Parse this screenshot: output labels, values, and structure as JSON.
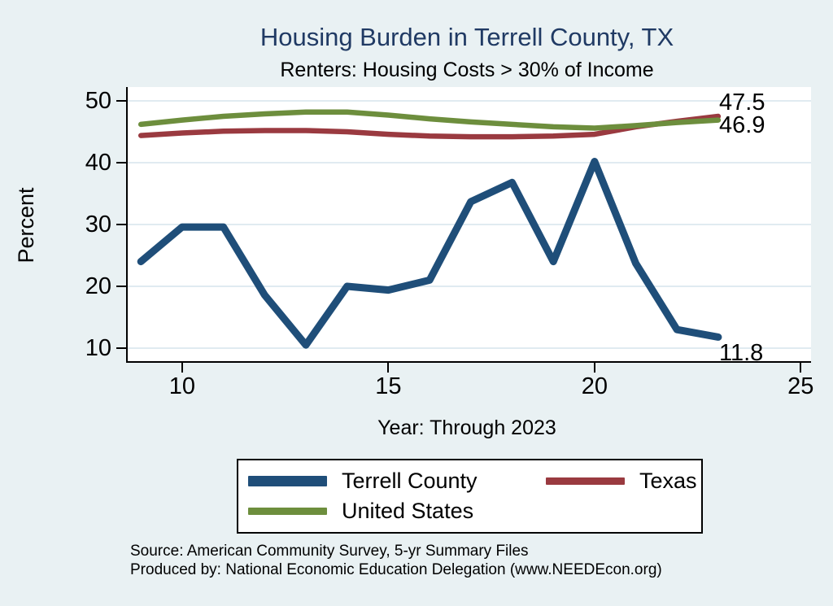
{
  "title": "Housing Burden in Terrell County, TX",
  "subtitle": "Renters: Housing Costs > 30% of Income",
  "y_axis_label": "Percent",
  "x_axis_label": "Year: Through 2023",
  "end_labels": {
    "texas": "47.5",
    "united_states": "46.9",
    "terrell_county": "11.8"
  },
  "source": {
    "line1": "Source: American Community Survey, 5-yr Summary Files",
    "line2": "Produced by: National Economic Education Delegation (www.NEEDEcon.org)"
  },
  "colors": {
    "background": "#e9f1f3",
    "title": "#203a64",
    "terrell_county": "#1f4e79",
    "texas": "#9a3a40",
    "united_states": "#6d8e3d",
    "gridline": "#e0ebf1",
    "axis": "#000000"
  },
  "legend": {
    "items": [
      {
        "label": "Terrell County",
        "color": "#1f4e79"
      },
      {
        "label": "Texas",
        "color": "#9a3a40"
      },
      {
        "label": "United States",
        "color": "#6d8e3d"
      }
    ]
  },
  "chart_data": {
    "type": "line",
    "x": [
      9,
      10,
      11,
      12,
      13,
      14,
      15,
      16,
      17,
      18,
      19,
      20,
      21,
      22,
      23
    ],
    "x_tick_labels": [
      "10",
      "15",
      "20",
      "25"
    ],
    "x_ticks": [
      10,
      15,
      20,
      25
    ],
    "y_ticks": [
      10,
      20,
      30,
      40,
      50
    ],
    "xlim": [
      8.68,
      25.25
    ],
    "ylim": [
      7.9,
      52.24
    ],
    "grid": "horizontal",
    "legend_position": "bottom",
    "series": [
      {
        "name": "Terrell County",
        "color": "#1f4e79",
        "values": [
          24.0,
          29.6,
          29.6,
          18.6,
          10.5,
          20.0,
          19.4,
          21.0,
          33.7,
          36.8,
          24.0,
          40.2,
          23.7,
          13.0,
          11.8
        ]
      },
      {
        "name": "Texas",
        "color": "#9a3a40",
        "values": [
          44.4,
          44.8,
          45.1,
          45.2,
          45.2,
          45.0,
          44.6,
          44.3,
          44.2,
          44.2,
          44.3,
          44.6,
          45.8,
          46.7,
          47.5
        ]
      },
      {
        "name": "United States",
        "color": "#6d8e3d",
        "values": [
          46.2,
          46.9,
          47.5,
          47.9,
          48.2,
          48.2,
          47.7,
          47.1,
          46.6,
          46.2,
          45.8,
          45.6,
          46.0,
          46.5,
          46.9
        ]
      }
    ]
  }
}
